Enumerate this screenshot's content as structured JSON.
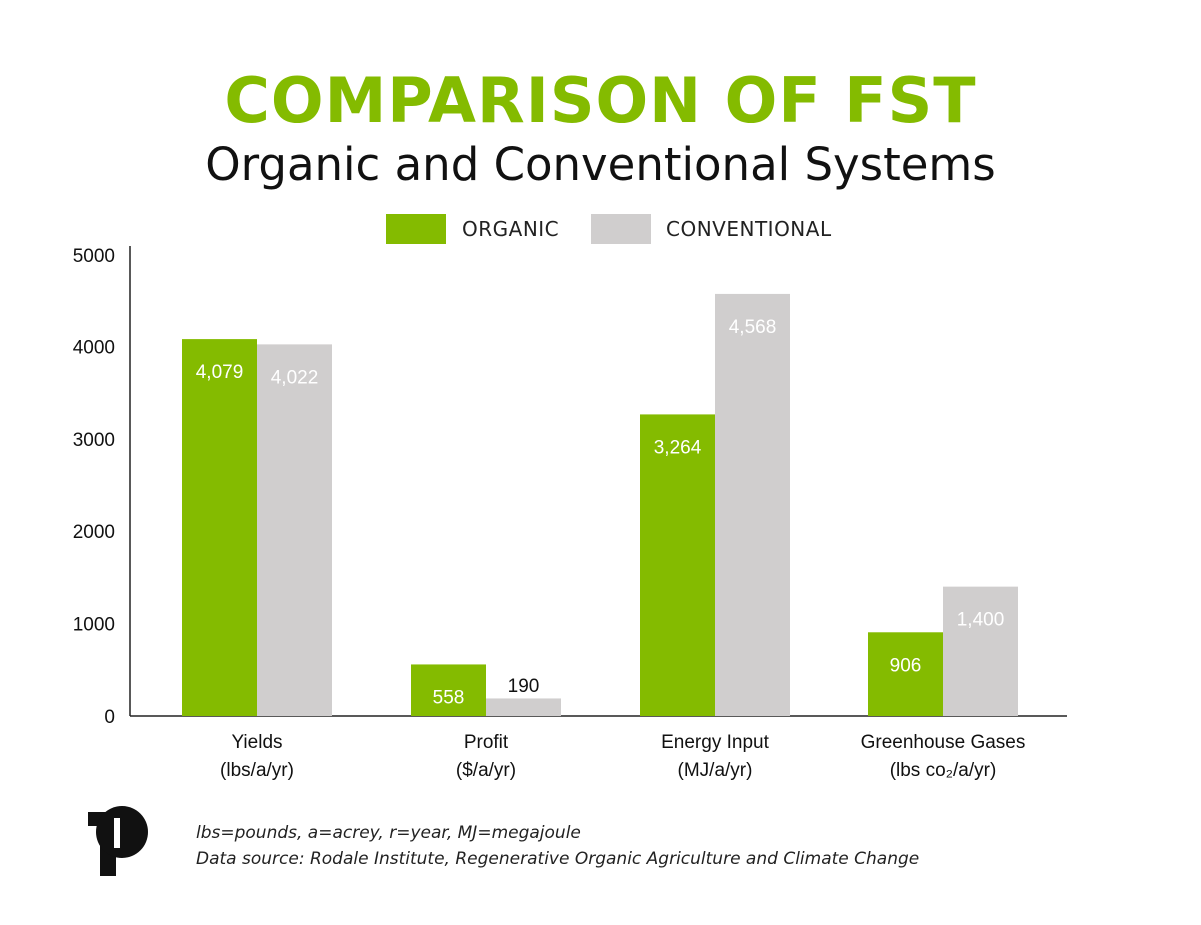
{
  "header": {
    "title": "COMPARISON OF FST",
    "subtitle": "Organic and Conventional Systems"
  },
  "colors": {
    "title": "#84bb00",
    "organic": "#84bb00",
    "conventional": "#d0cece",
    "axis": "#222222"
  },
  "legend": {
    "organic_label": "ORGANIC",
    "conventional_label": "CONVENTIONAL"
  },
  "chart_data": {
    "type": "bar",
    "categories": [
      "Yields",
      "Profit",
      "Energy Input",
      "Greenhouse Gases"
    ],
    "category_units": [
      "(lbs/a/yr)",
      "($/a/yr)",
      "(MJ/a/yr)",
      "(lbs co₂/a/yr)"
    ],
    "series": [
      {
        "name": "ORGANIC",
        "values": [
          4079,
          558,
          3264,
          906
        ],
        "value_labels": [
          "4,079",
          "558",
          "3,264",
          "906"
        ]
      },
      {
        "name": "CONVENTIONAL",
        "values": [
          4022,
          190,
          4568,
          1400
        ],
        "value_labels": [
          "4,022",
          "190",
          "4,568",
          "1,400"
        ]
      }
    ],
    "yticks": [
      0,
      1000,
      2000,
      3000,
      4000,
      5000
    ],
    "ylim": [
      0,
      5000
    ],
    "grid": false,
    "legend_position": "top-center"
  },
  "footer": {
    "note_line1": "lbs=pounds, a=acrey, r=year, MJ=megajoule",
    "note_line2": "Data source: Rodale Institute, Regenerative Organic Agriculture and Climate Change",
    "logo_icon": "rodale-logo-icon"
  }
}
